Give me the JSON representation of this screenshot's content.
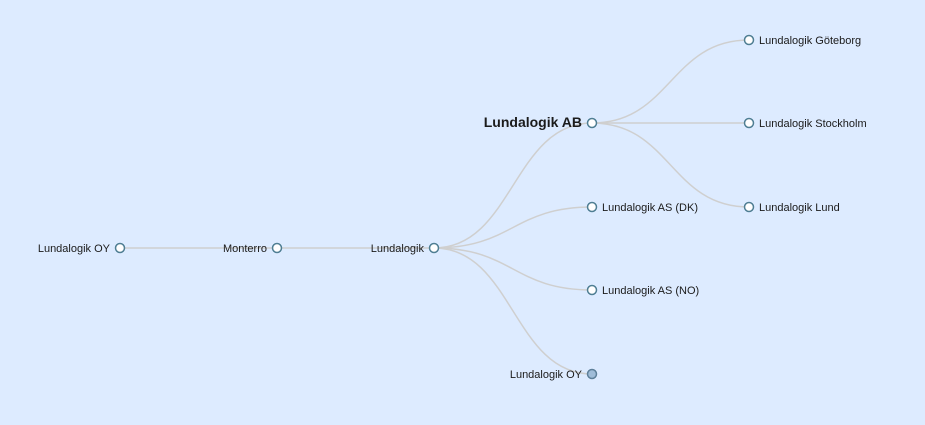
{
  "diagram": {
    "type": "tree",
    "background": "#ddebff",
    "link_color": "#cfcfcf",
    "node_stroke": "#4f7e93",
    "node_fill": "#ffffff",
    "collapsed_node_fill": "#9fbcd8",
    "nodes": [
      {
        "id": "oy-root",
        "label": "Lundalogik OY",
        "parent": null
      },
      {
        "id": "monterro",
        "label": "Monterro",
        "parent": "oy-root"
      },
      {
        "id": "lundalogik",
        "label": "Lundalogik",
        "parent": "monterro"
      },
      {
        "id": "ab",
        "label": "Lundalogik AB",
        "parent": "lundalogik",
        "emphasized": true
      },
      {
        "id": "dk",
        "label": "Lundalogik AS (DK)",
        "parent": "lundalogik"
      },
      {
        "id": "no",
        "label": "Lundalogik AS (NO)",
        "parent": "lundalogik"
      },
      {
        "id": "oy-child",
        "label": "Lundalogik OY",
        "parent": "lundalogik",
        "collapsed": true
      },
      {
        "id": "gbg",
        "label": "Lundalogik Göteborg",
        "parent": "ab"
      },
      {
        "id": "sthlm",
        "label": "Lundalogik Stockholm",
        "parent": "ab"
      },
      {
        "id": "lund",
        "label": "Lundalogik Lund",
        "parent": "ab"
      }
    ]
  }
}
